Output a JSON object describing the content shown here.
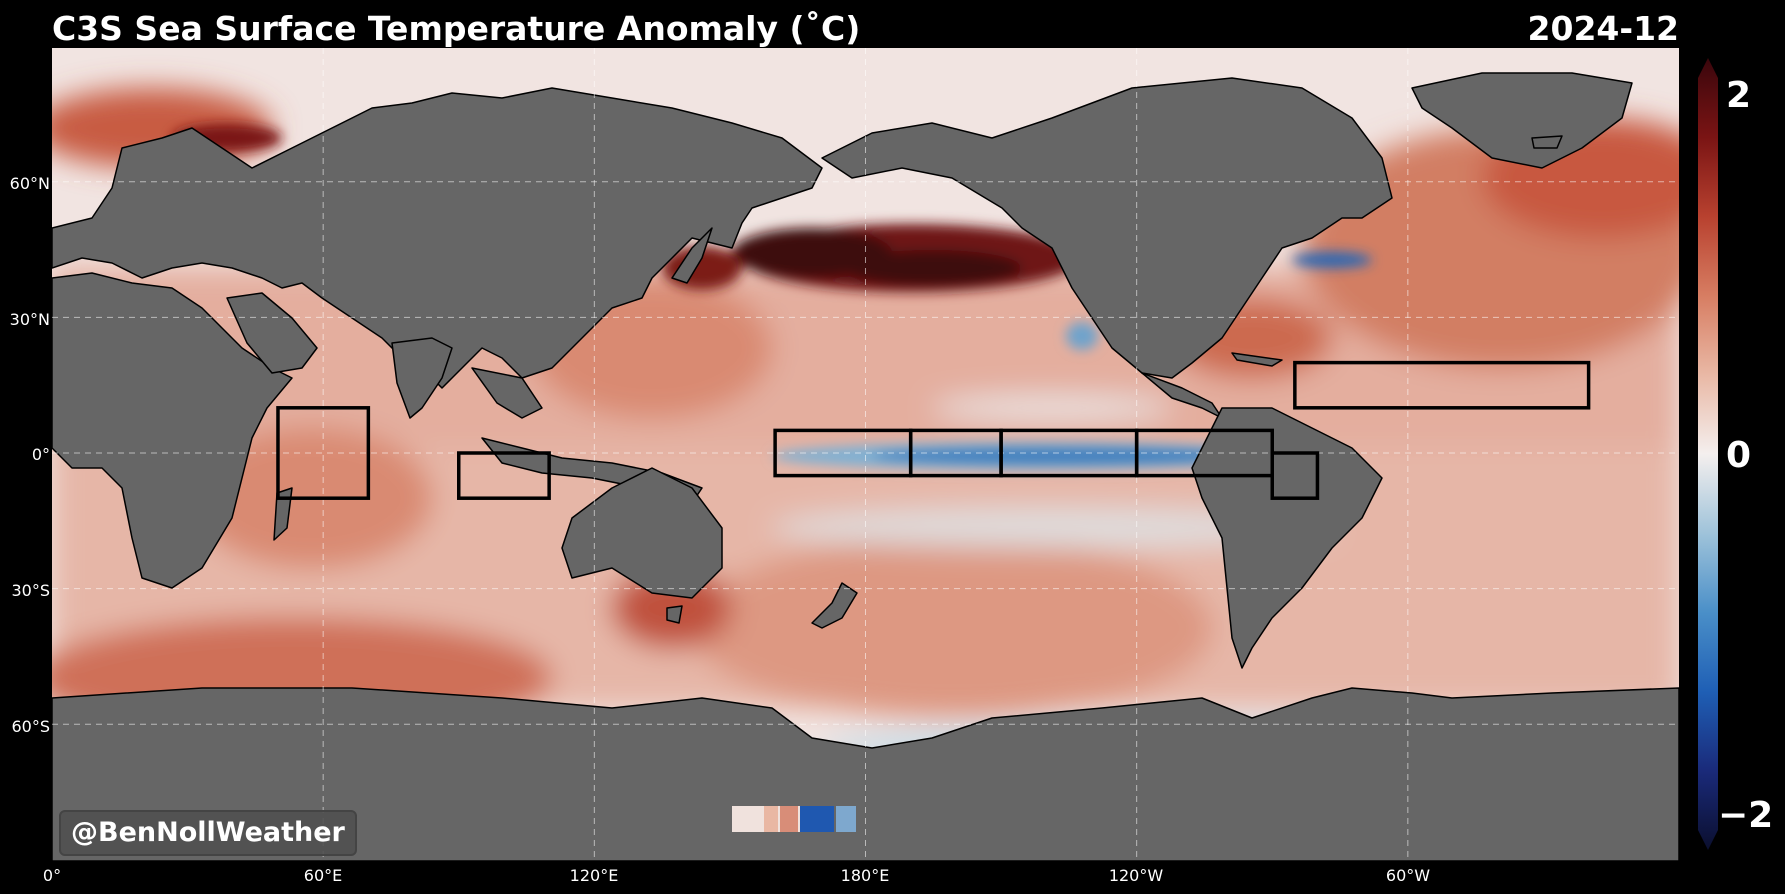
{
  "header": {
    "title": "C3S Sea Surface Temperature Anomaly (˚C)",
    "date": "2024-12"
  },
  "map": {
    "projection": "Equirectangular, Pacific-centered (0°–360°)",
    "lat_ticks": [
      "60°N",
      "30°N",
      "0°",
      "30°S",
      "60°S"
    ],
    "lon_ticks": [
      "0°",
      "60°E",
      "120°E",
      "180°E",
      "120°W",
      "60°W"
    ],
    "land_color": "#666666",
    "regions": [
      {
        "name": "Western Indian Ocean box",
        "lon": [
          50,
          70
        ],
        "lat": [
          -10,
          10
        ]
      },
      {
        "name": "Eastern Indian Ocean box",
        "lon": [
          90,
          110
        ],
        "lat": [
          -10,
          0
        ]
      },
      {
        "name": "Niño 4 west box",
        "lon": [
          160,
          190
        ],
        "lat": [
          -5,
          5
        ]
      },
      {
        "name": "Niño 4 east box",
        "lon": [
          190,
          210
        ],
        "lat": [
          -5,
          5
        ]
      },
      {
        "name": "Niño 3 west box",
        "lon": [
          210,
          240
        ],
        "lat": [
          -5,
          5
        ]
      },
      {
        "name": "Niño 3 east box",
        "lon": [
          240,
          270
        ],
        "lat": [
          -5,
          5
        ]
      },
      {
        "name": "Niño 1+2 box",
        "lon": [
          270,
          280
        ],
        "lat": [
          -10,
          0
        ]
      },
      {
        "name": "Tropical North Atlantic box",
        "lon": [
          275,
          340
        ],
        "lat": [
          10,
          20
        ]
      }
    ]
  },
  "colorbar": {
    "labels": [
      "2",
      "0",
      "−2"
    ],
    "min": -2,
    "max": 2,
    "colors": [
      "#0b0f2e",
      "#1a2a7a",
      "#1f5fb5",
      "#4a8fc8",
      "#9fc3da",
      "#f4efee",
      "#e9b8a5",
      "#d77d62",
      "#b8412f",
      "#7a1414",
      "#3a060c"
    ]
  },
  "watermark": "@BenNollWeather"
}
